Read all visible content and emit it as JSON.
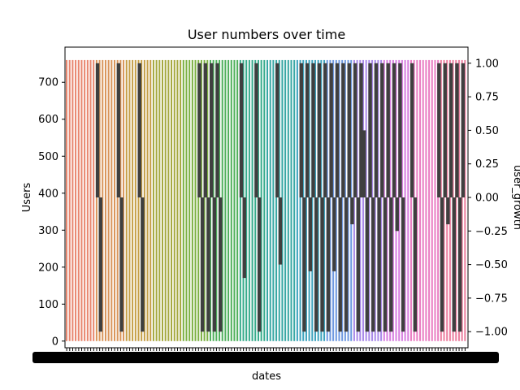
{
  "chart_data": {
    "type": "bar",
    "title": "User numbers over time",
    "xlabel": "dates",
    "ylabel": "Users",
    "y2label": "user_growth",
    "ylim": [
      -18,
      795
    ],
    "y2lim": [
      -1.12,
      1.12
    ],
    "yticks": [
      0,
      100,
      200,
      300,
      400,
      500,
      600,
      700
    ],
    "y2ticks": [
      -1.0,
      -0.75,
      -0.5,
      -0.25,
      0.0,
      0.25,
      0.5,
      0.75,
      1.0
    ],
    "y2tick_labels": [
      "−1.00",
      "−0.75",
      "−0.50",
      "−0.25",
      "0.00",
      "0.25",
      "0.50",
      "0.75",
      "1.00"
    ],
    "x_ticklabels_overlapping": true,
    "grid": false,
    "series": [
      {
        "axis": "left",
        "values_summary": "many narrow bars, each roughly 760 users, colored with a cycling hue palette"
      },
      {
        "axis": "right",
        "color": "#3f3f3f",
        "values_summary": "growth bars of +1 or -1 at irregular dates, some partial"
      }
    ],
    "user_level": 760,
    "palette": [
      "#e8866e",
      "#d9955a",
      "#c59e46",
      "#a5a83e",
      "#7cb042",
      "#4fb05c",
      "#36ab8b",
      "#38a7a4",
      "#3ea3bd",
      "#6f99e0",
      "#a98ae8",
      "#d77fe0",
      "#ea7fc3",
      "#ec80a0"
    ],
    "growth_color": "#3f3f3f",
    "growth": [
      {
        "i": 1,
        "v": 0
      },
      {
        "i": 10,
        "v": 1
      },
      {
        "i": 11,
        "v": -1
      },
      {
        "i": 17,
        "v": 1
      },
      {
        "i": 18,
        "v": -1
      },
      {
        "i": 24,
        "v": 1
      },
      {
        "i": 25,
        "v": -1
      },
      {
        "i": 44,
        "v": 1
      },
      {
        "i": 45,
        "v": -1
      },
      {
        "i": 46,
        "v": 1
      },
      {
        "i": 47,
        "v": -1
      },
      {
        "i": 48,
        "v": 1
      },
      {
        "i": 49,
        "v": -1
      },
      {
        "i": 50,
        "v": 1
      },
      {
        "i": 51,
        "v": -1
      },
      {
        "i": 58,
        "v": 1
      },
      {
        "i": 59,
        "v": -0.6
      },
      {
        "i": 63,
        "v": 1
      },
      {
        "i": 64,
        "v": -1
      },
      {
        "i": 70,
        "v": 1
      },
      {
        "i": 71,
        "v": -0.5
      },
      {
        "i": 78,
        "v": 1
      },
      {
        "i": 79,
        "v": -1
      },
      {
        "i": 80,
        "v": 1
      },
      {
        "i": 81,
        "v": -0.55
      },
      {
        "i": 82,
        "v": 1
      },
      {
        "i": 83,
        "v": -1
      },
      {
        "i": 84,
        "v": 1
      },
      {
        "i": 85,
        "v": -1
      },
      {
        "i": 86,
        "v": 1
      },
      {
        "i": 87,
        "v": -1
      },
      {
        "i": 88,
        "v": 1
      },
      {
        "i": 89,
        "v": -0.55
      },
      {
        "i": 90,
        "v": 1
      },
      {
        "i": 91,
        "v": -1
      },
      {
        "i": 92,
        "v": 1
      },
      {
        "i": 93,
        "v": -1
      },
      {
        "i": 94,
        "v": 1
      },
      {
        "i": 95,
        "v": -0.2
      },
      {
        "i": 96,
        "v": 1
      },
      {
        "i": 97,
        "v": -1
      },
      {
        "i": 98,
        "v": 1
      },
      {
        "i": 99,
        "v": 0.5
      },
      {
        "i": 100,
        "v": -1
      },
      {
        "i": 101,
        "v": 1
      },
      {
        "i": 102,
        "v": -1
      },
      {
        "i": 103,
        "v": 1
      },
      {
        "i": 104,
        "v": -1
      },
      {
        "i": 105,
        "v": 1
      },
      {
        "i": 106,
        "v": -1
      },
      {
        "i": 107,
        "v": 1
      },
      {
        "i": 108,
        "v": -1
      },
      {
        "i": 109,
        "v": 1
      },
      {
        "i": 110,
        "v": -0.25
      },
      {
        "i": 111,
        "v": 1
      },
      {
        "i": 112,
        "v": -1
      },
      {
        "i": 115,
        "v": 1
      },
      {
        "i": 116,
        "v": -1
      },
      {
        "i": 124,
        "v": 1
      },
      {
        "i": 125,
        "v": -1
      },
      {
        "i": 126,
        "v": 1
      },
      {
        "i": 127,
        "v": -0.2
      },
      {
        "i": 128,
        "v": 1
      },
      {
        "i": 129,
        "v": -1
      },
      {
        "i": 130,
        "v": 1
      },
      {
        "i": 131,
        "v": -1
      },
      {
        "i": 132,
        "v": 1
      }
    ]
  }
}
